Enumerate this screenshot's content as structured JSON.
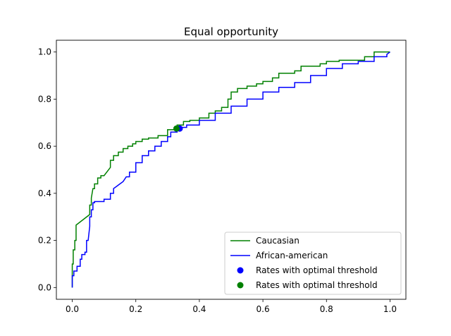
{
  "chart_data": {
    "type": "line",
    "title": "Equal opportunity",
    "xlabel": "",
    "ylabel": "",
    "xlim": [
      -0.05,
      1.05
    ],
    "ylim": [
      -0.05,
      1.05
    ],
    "xticks": [
      "0.0",
      "0.2",
      "0.4",
      "0.6",
      "0.8",
      "1.0"
    ],
    "yticks": [
      "0.0",
      "0.2",
      "0.4",
      "0.6",
      "0.8",
      "1.0"
    ],
    "grid": false,
    "legend_position": "lower-right",
    "series": [
      {
        "name": "Caucasian",
        "color": "#008000",
        "x": [
          0.0,
          0.0,
          0.003,
          0.003,
          0.008,
          0.008,
          0.012,
          0.012,
          0.055,
          0.055,
          0.06,
          0.06,
          0.065,
          0.07,
          0.07,
          0.08,
          0.08,
          0.09,
          0.09,
          0.1,
          0.12,
          0.12,
          0.13,
          0.13,
          0.145,
          0.145,
          0.16,
          0.16,
          0.175,
          0.175,
          0.19,
          0.19,
          0.2,
          0.2,
          0.22,
          0.22,
          0.24,
          0.24,
          0.27,
          0.27,
          0.3,
          0.3,
          0.33,
          0.33,
          0.35,
          0.35,
          0.37,
          0.37,
          0.4,
          0.4,
          0.43,
          0.43,
          0.45,
          0.45,
          0.47,
          0.47,
          0.49,
          0.49,
          0.5,
          0.5,
          0.52,
          0.52,
          0.55,
          0.55,
          0.58,
          0.58,
          0.6,
          0.6,
          0.63,
          0.63,
          0.65,
          0.65,
          0.7,
          0.7,
          0.72,
          0.72,
          0.78,
          0.78,
          0.8,
          0.8,
          0.84,
          0.84,
          0.92,
          0.92,
          0.95,
          0.95,
          1.0,
          1.0
        ],
        "y": [
          0.0,
          0.1,
          0.1,
          0.16,
          0.16,
          0.2,
          0.2,
          0.265,
          0.31,
          0.35,
          0.35,
          0.38,
          0.42,
          0.42,
          0.44,
          0.44,
          0.465,
          0.465,
          0.475,
          0.475,
          0.51,
          0.54,
          0.54,
          0.56,
          0.56,
          0.575,
          0.575,
          0.59,
          0.59,
          0.6,
          0.6,
          0.61,
          0.61,
          0.62,
          0.62,
          0.63,
          0.63,
          0.635,
          0.635,
          0.645,
          0.645,
          0.67,
          0.67,
          0.69,
          0.69,
          0.705,
          0.705,
          0.71,
          0.71,
          0.72,
          0.72,
          0.74,
          0.74,
          0.75,
          0.75,
          0.765,
          0.765,
          0.8,
          0.8,
          0.83,
          0.83,
          0.845,
          0.845,
          0.855,
          0.855,
          0.865,
          0.865,
          0.875,
          0.875,
          0.89,
          0.89,
          0.91,
          0.91,
          0.92,
          0.92,
          0.94,
          0.94,
          0.95,
          0.95,
          0.96,
          0.96,
          0.965,
          0.965,
          0.98,
          0.98,
          1.0,
          1.0,
          1.0
        ]
      },
      {
        "name": "African-american",
        "color": "#0000ff",
        "x": [
          0.0,
          0.0,
          0.005,
          0.005,
          0.015,
          0.015,
          0.025,
          0.025,
          0.03,
          0.03,
          0.04,
          0.04,
          0.045,
          0.045,
          0.05,
          0.055,
          0.055,
          0.06,
          0.06,
          0.065,
          0.065,
          0.07,
          0.07,
          0.1,
          0.1,
          0.12,
          0.12,
          0.13,
          0.13,
          0.14,
          0.15,
          0.16,
          0.17,
          0.18,
          0.18,
          0.2,
          0.2,
          0.22,
          0.22,
          0.24,
          0.24,
          0.26,
          0.26,
          0.28,
          0.28,
          0.3,
          0.3,
          0.31,
          0.31,
          0.33,
          0.33,
          0.36,
          0.36,
          0.4,
          0.4,
          0.45,
          0.45,
          0.5,
          0.5,
          0.55,
          0.55,
          0.6,
          0.6,
          0.65,
          0.65,
          0.7,
          0.7,
          0.75,
          0.75,
          0.8,
          0.8,
          0.85,
          0.85,
          0.9,
          0.9,
          0.95,
          0.95,
          0.99,
          0.99,
          1.0
        ],
        "y": [
          0.0,
          0.05,
          0.05,
          0.07,
          0.07,
          0.09,
          0.09,
          0.12,
          0.12,
          0.14,
          0.14,
          0.15,
          0.15,
          0.2,
          0.2,
          0.26,
          0.3,
          0.3,
          0.33,
          0.33,
          0.36,
          0.36,
          0.365,
          0.365,
          0.375,
          0.375,
          0.4,
          0.4,
          0.42,
          0.43,
          0.44,
          0.45,
          0.47,
          0.47,
          0.49,
          0.49,
          0.53,
          0.53,
          0.56,
          0.56,
          0.58,
          0.58,
          0.6,
          0.6,
          0.62,
          0.62,
          0.64,
          0.64,
          0.66,
          0.66,
          0.68,
          0.68,
          0.69,
          0.69,
          0.71,
          0.71,
          0.74,
          0.74,
          0.77,
          0.77,
          0.8,
          0.8,
          0.83,
          0.83,
          0.85,
          0.85,
          0.87,
          0.87,
          0.9,
          0.9,
          0.93,
          0.93,
          0.95,
          0.95,
          0.96,
          0.96,
          0.98,
          0.98,
          0.99,
          1.0
        ]
      }
    ],
    "points": [
      {
        "name": "Rates with optimal threshold",
        "color": "#0000ff",
        "x": 0.338,
        "y": 0.675
      },
      {
        "name": "Rates with optimal threshold",
        "color": "#008000",
        "x": 0.328,
        "y": 0.675
      }
    ],
    "legend": [
      {
        "label": "Caucasian",
        "kind": "line",
        "color": "#008000"
      },
      {
        "label": "African-american",
        "kind": "line",
        "color": "#0000ff"
      },
      {
        "label": "Rates with optimal threshold",
        "kind": "marker",
        "color": "#0000ff"
      },
      {
        "label": "Rates with optimal threshold",
        "kind": "marker",
        "color": "#008000"
      }
    ]
  }
}
